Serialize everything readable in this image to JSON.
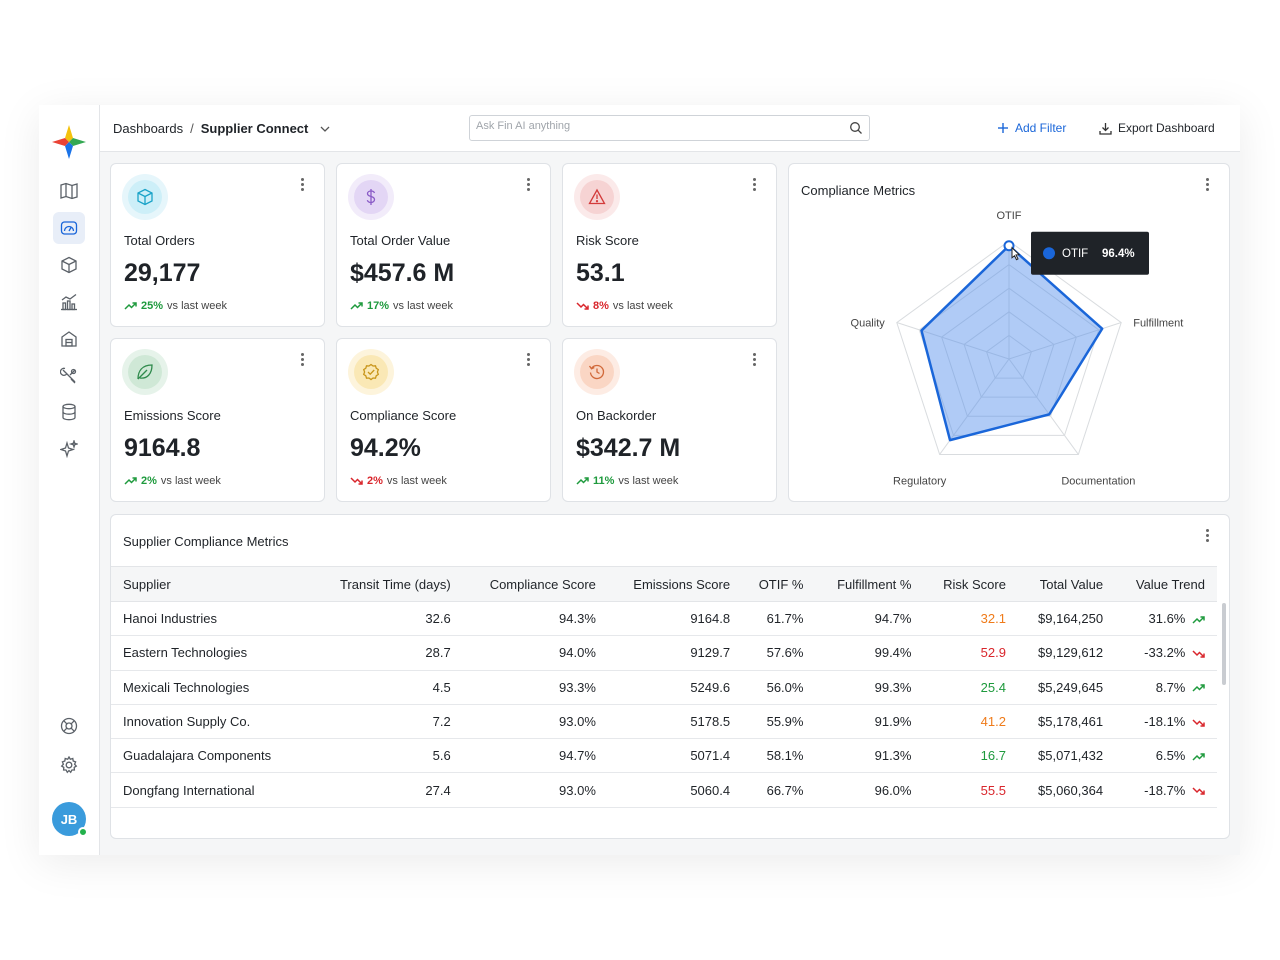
{
  "breadcrumb": {
    "root": "Dashboards",
    "separator": "/",
    "current": "Supplier Connect"
  },
  "search": {
    "placeholder": "Ask Fin AI anything",
    "value": ""
  },
  "toolbar": {
    "add_filter": "Add Filter",
    "export": "Export Dashboard"
  },
  "user": {
    "initials": "JB"
  },
  "colors": {
    "accent": "#1a66d9",
    "up": "#1e9a3d",
    "down": "#d9262c",
    "risk_high": "#d9262c",
    "risk_mid": "#ef7b1a",
    "risk_low": "#1e9a3d"
  },
  "kpis": [
    {
      "label": "Total Orders",
      "value": "29,177",
      "pct": "25%",
      "note": "vs last week",
      "dir": "up",
      "icon": "cube-icon"
    },
    {
      "label": "Total Order Value",
      "value": "$457.6 M",
      "pct": "17%",
      "note": "vs last week",
      "dir": "up",
      "icon": "dollar-icon"
    },
    {
      "label": "Risk Score",
      "value": "53.1",
      "pct": "8%",
      "note": "vs last week",
      "dir": "down",
      "icon": "warning-icon"
    },
    {
      "label": "Emissions Score",
      "value": "9164.8",
      "pct": "2%",
      "note": "vs last week",
      "dir": "up",
      "icon": "leaf-icon"
    },
    {
      "label": "Compliance Score",
      "value": "94.2%",
      "pct": "2%",
      "note": "vs last week",
      "dir": "down",
      "icon": "badge-check-icon"
    },
    {
      "label": "On Backorder",
      "value": "$342.7 M",
      "pct": "11%",
      "note": "vs last week",
      "dir": "up",
      "icon": "history-icon"
    }
  ],
  "compliance_chart": {
    "title": "Compliance Metrics",
    "tooltip": {
      "label": "OTIF",
      "value": "96.4%"
    },
    "chart_data": {
      "type": "radar",
      "categories": [
        "OTIF",
        "Fulfillment",
        "Documentation",
        "Regulatory",
        "Quality"
      ],
      "values": [
        96,
        83,
        58,
        85,
        78
      ],
      "rlim": [
        0,
        100
      ],
      "grid_levels": 5
    }
  },
  "table": {
    "title": "Supplier Compliance Metrics",
    "columns": [
      "Supplier",
      "Transit Time (days)",
      "Compliance Score",
      "Emissions Score",
      "OTIF %",
      "Fulfillment %",
      "Risk Score",
      "Total Value",
      "Value Trend"
    ],
    "rows": [
      {
        "supplier": "Hanoi Industries",
        "transit": "32.6",
        "compliance": "94.3%",
        "emissions": "9164.8",
        "otif": "61.7%",
        "fulfillment": "94.7%",
        "risk": "32.1",
        "risk_level": "mid",
        "total": "$9,164,250",
        "trend": "31.6%",
        "trend_dir": "up"
      },
      {
        "supplier": "Eastern Technologies",
        "transit": "28.7",
        "compliance": "94.0%",
        "emissions": "9129.7",
        "otif": "57.6%",
        "fulfillment": "99.4%",
        "risk": "52.9",
        "risk_level": "high",
        "total": "$9,129,612",
        "trend": "-33.2%",
        "trend_dir": "down"
      },
      {
        "supplier": "Mexicali Technologies",
        "transit": "4.5",
        "compliance": "93.3%",
        "emissions": "5249.6",
        "otif": "56.0%",
        "fulfillment": "99.3%",
        "risk": "25.4",
        "risk_level": "low",
        "total": "$5,249,645",
        "trend": "8.7%",
        "trend_dir": "up"
      },
      {
        "supplier": "Innovation Supply Co.",
        "transit": "7.2",
        "compliance": "93.0%",
        "emissions": "5178.5",
        "otif": "55.9%",
        "fulfillment": "91.9%",
        "risk": "41.2",
        "risk_level": "mid",
        "total": "$5,178,461",
        "trend": "-18.1%",
        "trend_dir": "down"
      },
      {
        "supplier": "Guadalajara Components",
        "transit": "5.6",
        "compliance": "94.7%",
        "emissions": "5071.4",
        "otif": "58.1%",
        "fulfillment": "91.3%",
        "risk": "16.7",
        "risk_level": "low",
        "total": "$5,071,432",
        "trend": "6.5%",
        "trend_dir": "up"
      },
      {
        "supplier": "Dongfang International",
        "transit": "27.4",
        "compliance": "93.0%",
        "emissions": "5060.4",
        "otif": "66.7%",
        "fulfillment": "96.0%",
        "risk": "55.5",
        "risk_level": "high",
        "total": "$5,060,364",
        "trend": "-18.7%",
        "trend_dir": "down"
      }
    ]
  }
}
